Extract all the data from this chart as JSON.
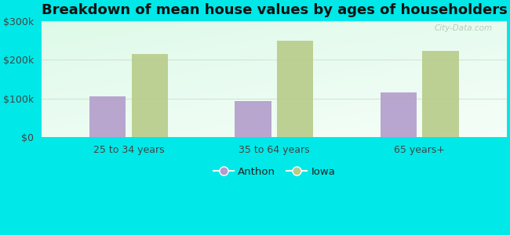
{
  "title": "Breakdown of mean house values by ages of householders",
  "categories": [
    "25 to 34 years",
    "35 to 64 years",
    "65 years+"
  ],
  "anthon_values": [
    105000,
    93000,
    115000
  ],
  "iowa_values": [
    215000,
    248000,
    222000
  ],
  "anthon_color": "#b39dcc",
  "iowa_color": "#b8cc8a",
  "ylim": [
    0,
    300000
  ],
  "yticks": [
    0,
    100000,
    200000,
    300000
  ],
  "ytick_labels": [
    "$0",
    "$100k",
    "$200k",
    "$300k"
  ],
  "legend_anthon": "Anthon",
  "legend_iowa": "Iowa",
  "bar_width": 0.25,
  "title_fontsize": 13,
  "watermark": "City-Data.com",
  "outer_bg": "#00e8e8",
  "plot_bg_color": "#e8f8f0"
}
